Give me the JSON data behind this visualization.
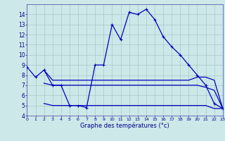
{
  "xlabel": "Graphe des températures (°c)",
  "bg_color": "#cce8e8",
  "grid_color": "#aac8c8",
  "line_color": "#0000bb",
  "hours": [
    0,
    1,
    2,
    3,
    4,
    5,
    6,
    7,
    8,
    9,
    10,
    11,
    12,
    13,
    14,
    15,
    16,
    17,
    18,
    19,
    20,
    21,
    22,
    23
  ],
  "temp_main": [
    8.8,
    7.8,
    8.5,
    7.0,
    7.0,
    5.0,
    5.0,
    4.8,
    9.0,
    9.0,
    13.0,
    11.5,
    14.2,
    14.0,
    14.5,
    13.5,
    11.8,
    10.8,
    10.0,
    9.0,
    8.0,
    7.0,
    5.2,
    4.7
  ],
  "temp_max_line_x": [
    2,
    3,
    4,
    5,
    6,
    7,
    8,
    9,
    10,
    11,
    12,
    13,
    14,
    15,
    16,
    17,
    18,
    19,
    20,
    21,
    22,
    23
  ],
  "temp_max_line_y": [
    8.5,
    7.5,
    7.5,
    7.5,
    7.5,
    7.5,
    7.5,
    7.5,
    7.5,
    7.5,
    7.5,
    7.5,
    7.5,
    7.5,
    7.5,
    7.5,
    7.5,
    7.5,
    7.8,
    7.8,
    7.5,
    4.7
  ],
  "temp_avg_line_x": [
    2,
    3,
    4,
    5,
    6,
    7,
    8,
    9,
    10,
    11,
    12,
    13,
    14,
    15,
    16,
    17,
    18,
    19,
    20,
    21,
    22,
    23
  ],
  "temp_avg_line_y": [
    7.2,
    7.0,
    7.0,
    7.0,
    7.0,
    7.0,
    7.0,
    7.0,
    7.0,
    7.0,
    7.0,
    7.0,
    7.0,
    7.0,
    7.0,
    7.0,
    7.0,
    7.0,
    7.0,
    6.8,
    6.5,
    4.7
  ],
  "temp_min_line_x": [
    2,
    3,
    4,
    5,
    6,
    7,
    8,
    9,
    10,
    11,
    12,
    13,
    14,
    15,
    16,
    17,
    18,
    19,
    20,
    21,
    22,
    23
  ],
  "temp_min_line_y": [
    5.2,
    5.0,
    5.0,
    5.0,
    5.0,
    5.0,
    5.0,
    5.0,
    5.0,
    5.0,
    5.0,
    5.0,
    5.0,
    5.0,
    5.0,
    5.0,
    5.0,
    5.0,
    5.0,
    5.0,
    4.7,
    4.7
  ],
  "xlim": [
    0,
    23
  ],
  "ylim": [
    4,
    15
  ],
  "yticks": [
    4,
    5,
    6,
    7,
    8,
    9,
    10,
    11,
    12,
    13,
    14
  ],
  "xticks": [
    0,
    1,
    2,
    3,
    4,
    5,
    6,
    7,
    8,
    9,
    10,
    11,
    12,
    13,
    14,
    15,
    16,
    17,
    18,
    19,
    20,
    21,
    22,
    23
  ]
}
